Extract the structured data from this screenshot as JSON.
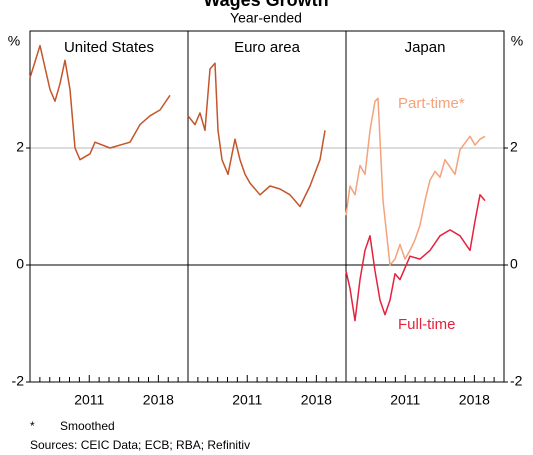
{
  "title": "Wages Growth",
  "subtitle": "Year-ended",
  "y_unit": "%",
  "footnote_marker": "*",
  "footnote": "Smoothed",
  "sources": "Sources: CEIC Data; ECB; RBA; Refinitiv",
  "chart_data": [
    {
      "type": "line",
      "title": "United States",
      "xlim": [
        2005,
        2021
      ],
      "ylim": [
        -2,
        4
      ],
      "xticks": [
        2011,
        2018
      ],
      "minor_xticks": [
        2006,
        2007,
        2008,
        2009,
        2010,
        2012,
        2013,
        2014,
        2015,
        2016,
        2017,
        2019,
        2020
      ],
      "yticks": [
        -2,
        0,
        2
      ],
      "grid": true,
      "series": [
        {
          "color": "#c4552a",
          "x": [
            2005,
            2006.01,
            2007.03,
            2007.53,
            2008.04,
            2008.54,
            2009.05,
            2009.56,
            2010.06,
            2011.08,
            2011.58,
            2013.1,
            2015.13,
            2016.14,
            2017.15,
            2018.16,
            2019.18
          ],
          "values": [
            3.2,
            3.75,
            3.0,
            2.8,
            3.1,
            3.5,
            3.0,
            2.0,
            1.8,
            1.9,
            2.1,
            2.0,
            2.1,
            2.4,
            2.55,
            2.65,
            2.9
          ]
        }
      ]
    },
    {
      "type": "line",
      "title": "Euro area",
      "xlim": [
        2005,
        2021
      ],
      "ylim": [
        -2,
        4
      ],
      "xticks": [
        2011,
        2018
      ],
      "minor_xticks": [
        2006,
        2007,
        2008,
        2009,
        2010,
        2012,
        2013,
        2014,
        2015,
        2016,
        2017,
        2019,
        2020
      ],
      "yticks": [
        -2,
        0,
        2
      ],
      "grid": true,
      "series": [
        {
          "color": "#c4552a",
          "x": [
            2005,
            2005.71,
            2006.22,
            2006.72,
            2007.23,
            2007.73,
            2008.04,
            2008.44,
            2009.05,
            2009.76,
            2010.27,
            2010.77,
            2011.28,
            2012.29,
            2013.3,
            2014.32,
            2015.33,
            2016.34,
            2017.35,
            2018.37,
            2018.87
          ],
          "values": [
            2.55,
            2.4,
            2.6,
            2.3,
            3.35,
            3.45,
            2.3,
            1.8,
            1.55,
            2.15,
            1.8,
            1.55,
            1.4,
            1.2,
            1.35,
            1.3,
            1.2,
            1.0,
            1.35,
            1.8,
            2.3
          ]
        }
      ]
    },
    {
      "type": "line",
      "title": "Japan",
      "xlim": [
        2005,
        2021
      ],
      "ylim": [
        -2,
        4
      ],
      "xticks": [
        2011,
        2018
      ],
      "minor_xticks": [
        2006,
        2007,
        2008,
        2009,
        2010,
        2012,
        2013,
        2014,
        2015,
        2016,
        2017,
        2019,
        2020
      ],
      "yticks": [
        -2,
        0,
        2
      ],
      "grid": true,
      "series": [
        {
          "name": "Part-time*",
          "color": "#f4a27c",
          "x": [
            2005,
            2005.41,
            2005.91,
            2006.42,
            2006.92,
            2007.43,
            2007.94,
            2008.24,
            2008.75,
            2009.46,
            2009.96,
            2010.47,
            2010.97,
            2011.48,
            2011.99,
            2012.49,
            2013.0,
            2013.51,
            2014.01,
            2014.52,
            2015.03,
            2016.04,
            2016.54,
            2017.56,
            2018.06,
            2018.57,
            2019.08
          ],
          "values": [
            0.85,
            1.35,
            1.2,
            1.7,
            1.55,
            2.3,
            2.8,
            2.85,
            1.1,
            0.0,
            0.1,
            0.35,
            0.1,
            0.25,
            0.43,
            0.68,
            1.1,
            1.45,
            1.6,
            1.5,
            1.8,
            1.55,
            1.97,
            2.2,
            2.05,
            2.15,
            2.2
          ]
        },
        {
          "name": "Full-time",
          "color": "#e4223e",
          "x": [
            2005,
            2005.41,
            2005.91,
            2006.42,
            2006.92,
            2007.43,
            2007.94,
            2008.44,
            2008.95,
            2009.46,
            2009.96,
            2010.47,
            2011.48,
            2012.49,
            2013.51,
            2014.52,
            2015.53,
            2016.54,
            2017.56,
            2018.06,
            2018.57,
            2019.08
          ],
          "values": [
            -0.1,
            -0.4,
            -0.95,
            -0.25,
            0.25,
            0.5,
            -0.1,
            -0.6,
            -0.85,
            -0.6,
            -0.15,
            -0.25,
            0.15,
            0.1,
            0.25,
            0.5,
            0.6,
            0.5,
            0.25,
            0.75,
            1.2,
            1.1
          ]
        }
      ]
    }
  ]
}
